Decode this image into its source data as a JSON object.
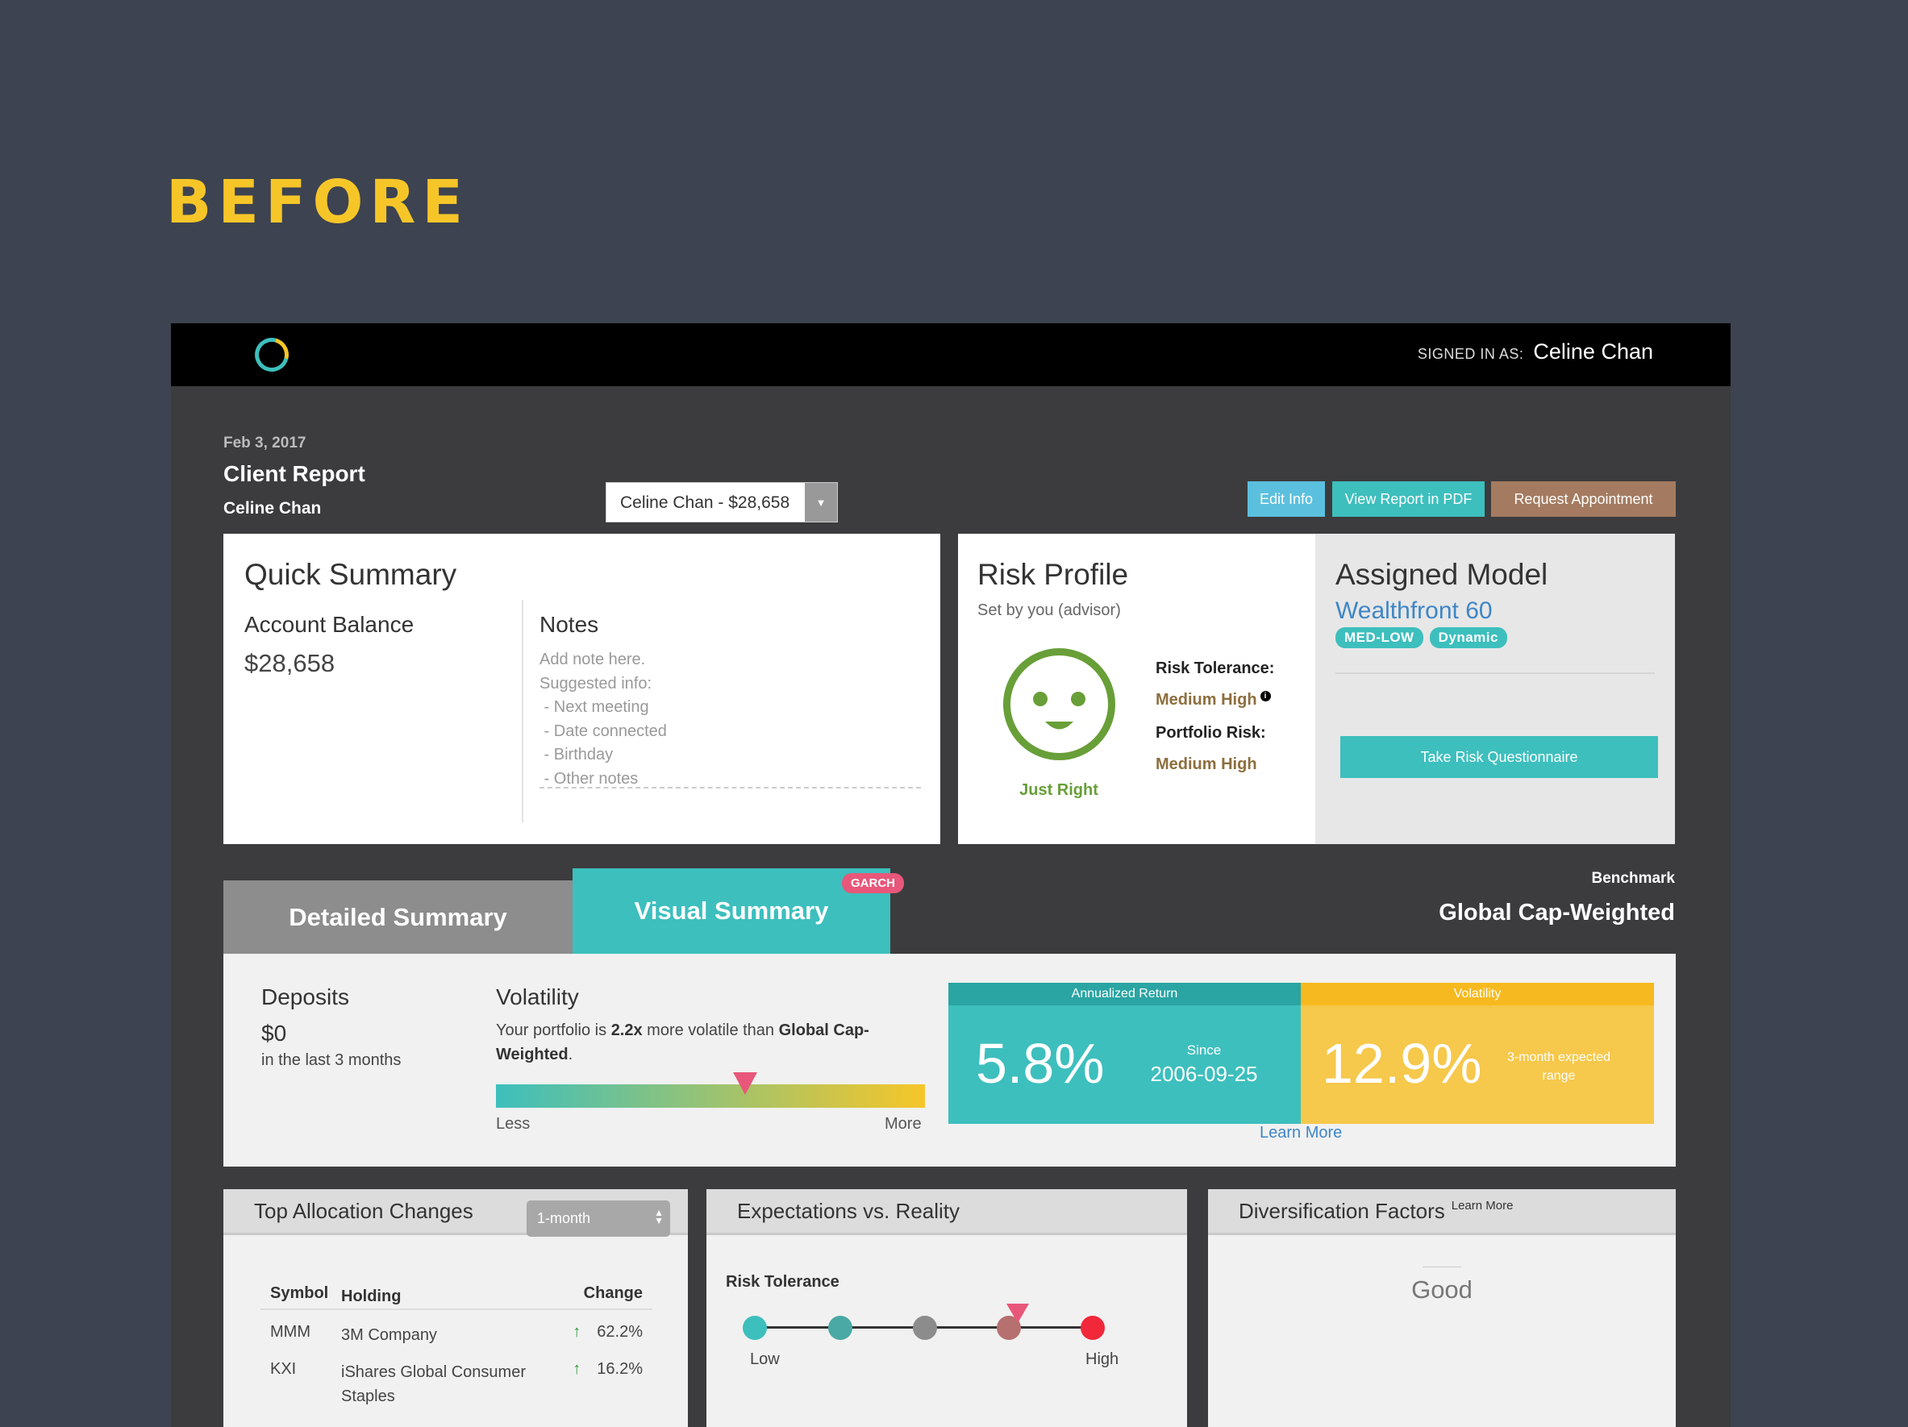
{
  "page": {
    "label": "BEFORE"
  },
  "header": {
    "signed_in_label": "SIGNED IN AS:",
    "user_name": "Celine Chan"
  },
  "report": {
    "date": "Feb 3, 2017",
    "title": "Client Report",
    "client": "Celine Chan"
  },
  "client_select": {
    "value": "Celine Chan - $28,658"
  },
  "actions": {
    "edit_info": "Edit Info",
    "view_pdf": "View Report in PDF",
    "request_appt": "Request Appointment"
  },
  "quick_summary": {
    "title": "Quick Summary",
    "balance_label": "Account Balance",
    "balance_value": "$28,658",
    "notes_label": "Notes",
    "notes_placeholder": [
      "Add note here.",
      "Suggested info:",
      " - Next meeting",
      " - Date connected",
      " - Birthday",
      " - Other notes"
    ]
  },
  "risk_profile": {
    "title": "Risk Profile",
    "subtitle": "Set by you (advisor)",
    "face_label": "Just Right",
    "tolerance_label": "Risk Tolerance:",
    "tolerance_value": "Medium High",
    "portfolio_label": "Portfolio Risk:",
    "portfolio_value": "Medium High"
  },
  "assigned_model": {
    "title": "Assigned Model",
    "model": "Wealthfront 60",
    "badges": [
      "MED-LOW",
      "Dynamic"
    ],
    "questionnaire_button": "Take Risk Questionnaire"
  },
  "tabs": {
    "detailed": "Detailed Summary",
    "visual": "Visual Summary",
    "visual_badge": "GARCH"
  },
  "benchmark": {
    "label": "Benchmark",
    "value": "Global Cap-Weighted"
  },
  "visual_summary": {
    "deposits_label": "Deposits",
    "deposits_value": "$0",
    "deposits_sub": "in the last 3 months",
    "volatility_label": "Volatility",
    "vol_text_1": "Your portfolio is ",
    "vol_text_bold1": "2.2x",
    "vol_text_2": " more volatile than ",
    "vol_text_bold2": "Global Cap-Weighted",
    "vol_text_3": ".",
    "vol_less": "Less",
    "vol_more": "More",
    "annualized_return_header": "Annualized Return",
    "annualized_return_value": "5.8%",
    "since_label": "Since",
    "since_date": "2006-09-25",
    "volatility_header": "Volatility",
    "volatility_value": "12.9%",
    "volatility_sub": "3-month expected range",
    "learn_more": "Learn More"
  },
  "allocation": {
    "title": "Top Allocation Changes",
    "period": "1-month",
    "headers": [
      "Symbol",
      "Holding",
      "Change"
    ],
    "rows": [
      {
        "symbol": "MMM",
        "holding": "3M Company",
        "change": "62.2%"
      },
      {
        "symbol": "KXI",
        "holding": "iShares Global Consumer Staples",
        "change": "16.2%"
      }
    ]
  },
  "expectations": {
    "title": "Expectations vs. Reality",
    "risk_label": "Risk Tolerance",
    "low": "Low",
    "high": "High"
  },
  "diversification": {
    "title": "Diversification Factors",
    "learn_more": "Learn More",
    "value": "Good"
  },
  "colors": {
    "accent": "#3dbfbd",
    "yellow": "#f6c629",
    "brown": "#a47b60",
    "pink": "#e8577a",
    "blue": "#3e86c6"
  }
}
